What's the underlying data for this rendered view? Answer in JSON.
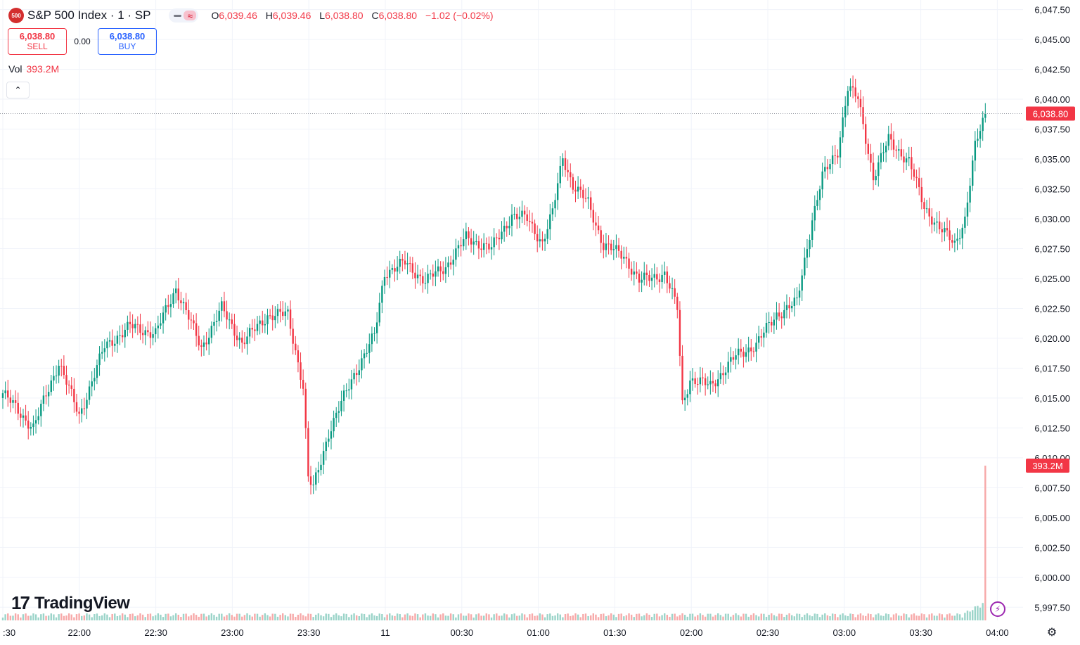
{
  "header": {
    "symbol_badge": "500",
    "title": "S&P 500 Index · 1 · SP",
    "ohlc": {
      "o_label": "O",
      "o": "6,039.46",
      "h_label": "H",
      "h": "6,039.46",
      "l_label": "L",
      "l": "6,038.80",
      "c_label": "C",
      "c": "6,038.80",
      "change": "−1.02 (−0.02%)"
    }
  },
  "trade": {
    "sell_price": "6,038.80",
    "sell_label": "SELL",
    "spread": "0.00",
    "buy_price": "6,038.80",
    "buy_label": "BUY"
  },
  "volume_legend": {
    "label": "Vol",
    "value": "393.2M"
  },
  "watermark": "TradingView",
  "colors": {
    "up": "#089981",
    "down": "#f23645",
    "last_price": "#f23645",
    "volume_up": "#9bd4c9",
    "volume_down": "#f7a9a9",
    "grid": "#f0f3fa"
  },
  "chart_data": {
    "type": "candlestick",
    "title": "S&P 500 Index · 1 · SP",
    "interval": "1 minute",
    "ylim": [
      5996.4,
      6048.3
    ],
    "y_ticks": [
      "6,047.50",
      "6,045.00",
      "6,042.50",
      "6,040.00",
      "6,037.50",
      "6,035.00",
      "6,032.50",
      "6,030.00",
      "6,027.50",
      "6,025.00",
      "6,022.50",
      "6,020.00",
      "6,017.50",
      "6,015.00",
      "6,012.50",
      "6,010.00",
      "6,007.50",
      "6,005.00",
      "6,002.50",
      "6,000.00",
      "5,997.50"
    ],
    "x_ticks": [
      ":30",
      "22:00",
      "22:30",
      "23:00",
      "23:30",
      "11",
      "00:30",
      "01:00",
      "01:30",
      "02:00",
      "02:30",
      "03:00",
      "03:30",
      "04:00"
    ],
    "last_price": 6038.8,
    "last_price_label": "6,038.80",
    "last_volume_label": "393.2M",
    "close_anchors": [
      {
        "t": 0,
        "v": 6015.4
      },
      {
        "t": 12,
        "v": 6012.5
      },
      {
        "t": 22,
        "v": 6018.0
      },
      {
        "t": 30,
        "v": 6013.5
      },
      {
        "t": 40,
        "v": 6019.3
      },
      {
        "t": 50,
        "v": 6021.0
      },
      {
        "t": 60,
        "v": 6020.4
      },
      {
        "t": 68,
        "v": 6024.2
      },
      {
        "t": 78,
        "v": 6019.2
      },
      {
        "t": 86,
        "v": 6022.5
      },
      {
        "t": 94,
        "v": 6019.6
      },
      {
        "t": 104,
        "v": 6021.9
      },
      {
        "t": 112,
        "v": 6022.0
      },
      {
        "t": 118,
        "v": 6016.0
      },
      {
        "t": 120,
        "v": 6008.2
      },
      {
        "t": 122,
        "v": 6007.5
      },
      {
        "t": 128,
        "v": 6012.1
      },
      {
        "t": 138,
        "v": 6017.0
      },
      {
        "t": 146,
        "v": 6020.2
      },
      {
        "t": 150,
        "v": 6025.5
      },
      {
        "t": 158,
        "v": 6026.3
      },
      {
        "t": 166,
        "v": 6024.8
      },
      {
        "t": 174,
        "v": 6026.0
      },
      {
        "t": 182,
        "v": 6028.4
      },
      {
        "t": 192,
        "v": 6027.5
      },
      {
        "t": 200,
        "v": 6030.3
      },
      {
        "t": 206,
        "v": 6030.0
      },
      {
        "t": 212,
        "v": 6028.0
      },
      {
        "t": 216,
        "v": 6030.5
      },
      {
        "t": 220,
        "v": 6035.2
      },
      {
        "t": 224,
        "v": 6032.8
      },
      {
        "t": 230,
        "v": 6031.3
      },
      {
        "t": 236,
        "v": 6027.8
      },
      {
        "t": 244,
        "v": 6026.9
      },
      {
        "t": 250,
        "v": 6024.8
      },
      {
        "t": 260,
        "v": 6025.4
      },
      {
        "t": 265,
        "v": 6022.5
      },
      {
        "t": 267,
        "v": 6014.5
      },
      {
        "t": 270,
        "v": 6016.6
      },
      {
        "t": 278,
        "v": 6016.0
      },
      {
        "t": 288,
        "v": 6018.5
      },
      {
        "t": 296,
        "v": 6019.5
      },
      {
        "t": 304,
        "v": 6022.0
      },
      {
        "t": 312,
        "v": 6023.0
      },
      {
        "t": 318,
        "v": 6030.0
      },
      {
        "t": 322,
        "v": 6033.5
      },
      {
        "t": 328,
        "v": 6035.7
      },
      {
        "t": 332,
        "v": 6041.0
      },
      {
        "t": 336,
        "v": 6040.0
      },
      {
        "t": 342,
        "v": 6033.5
      },
      {
        "t": 348,
        "v": 6036.6
      },
      {
        "t": 356,
        "v": 6034.8
      },
      {
        "t": 362,
        "v": 6031.0
      },
      {
        "t": 368,
        "v": 6029.2
      },
      {
        "t": 374,
        "v": 6027.9
      },
      {
        "t": 378,
        "v": 6030.0
      },
      {
        "t": 382,
        "v": 6036.0
      },
      {
        "t": 386,
        "v": 6038.8
      }
    ],
    "volume_spike": 393.2
  }
}
